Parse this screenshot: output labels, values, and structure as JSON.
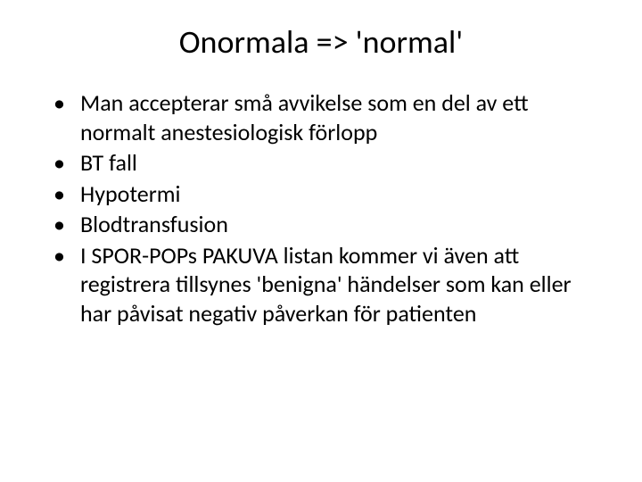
{
  "slide": {
    "title": "Onormala => 'normal'",
    "bullets": [
      "Man accepterar små avvikelse som en del av ett normalt anestesiologisk förlopp",
      "BT fall",
      "Hypotermi",
      "Blodtransfusion",
      "I SPOR-POPs PAKUVA listan kommer vi även att registrera tillsynes 'benigna' händelser som kan eller har påvisat negativ påverkan för patienten"
    ],
    "styling": {
      "background_color": "#ffffff",
      "text_color": "#000000",
      "title_fontsize": 36,
      "body_fontsize": 26,
      "font_family": "Calibri"
    }
  }
}
